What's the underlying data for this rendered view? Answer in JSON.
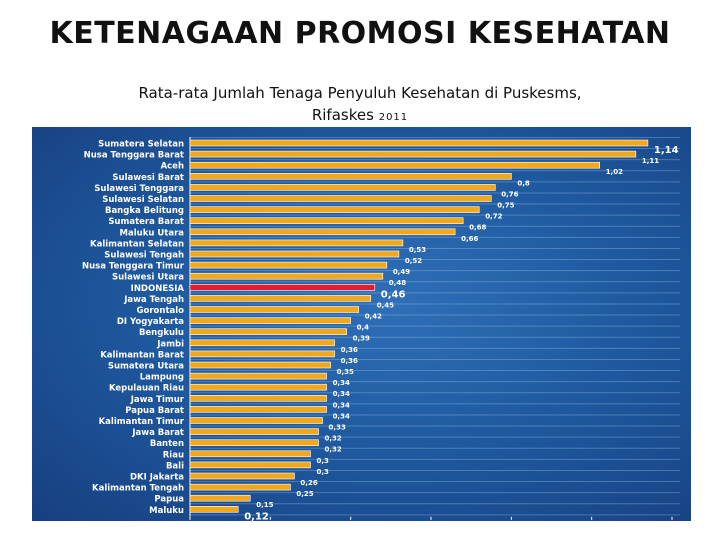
{
  "slide": {
    "title": "KETENAGAAN PROMOSI KESEHATAN",
    "subtitle_line1": "Rata-rata Jumlah Tenaga Penyuluh Kesehatan di Puskesms,",
    "subtitle_line2": "Rifaskes",
    "subtitle_year": "2011"
  },
  "colors": {
    "background": "#1f5aa0",
    "bar": "#f2a81d",
    "highlight_bar": "#e01e2e",
    "category_text": "#ffffff",
    "value_text": "#ffffff"
  },
  "chart_data": {
    "type": "bar",
    "orientation": "horizontal",
    "title": "",
    "xlabel": "",
    "ylabel": "",
    "xlim": [
      0,
      1.2
    ],
    "x_ticks": [
      "0",
      "0,2",
      "0,4",
      "0,6",
      "0,8",
      "1",
      "1,2"
    ],
    "grid": true,
    "highlight_category": "INDONESIA",
    "categories": [
      "Sumatera Selatan",
      "Nusa Tenggara Barat",
      "Aceh",
      "Sulawesi Barat",
      "Sulawesi Tenggara",
      "Sulawesi Selatan",
      "Bangka Belitung",
      "Sumatera Barat",
      "Maluku Utara",
      "Kalimantan Selatan",
      "Sulawesi Tengah",
      "Nusa Tenggara Timur",
      "Sulawesi Utara",
      "INDONESIA",
      "Jawa Tengah",
      "Gorontalo",
      "DI Yogyakarta",
      "Bengkulu",
      "Jambi",
      "Kalimantan Barat",
      "Sumatera Utara",
      "Lampung",
      "Kepulauan Riau",
      "Jawa Timur",
      "Papua Barat",
      "Kalimantan Timur",
      "Jawa Barat",
      "Banten",
      "Riau",
      "Bali",
      "DKI Jakarta",
      "Kalimantan Tengah",
      "Papua",
      "Maluku"
    ],
    "values": [
      1.14,
      1.11,
      1.02,
      0.8,
      0.76,
      0.75,
      0.72,
      0.68,
      0.66,
      0.53,
      0.52,
      0.49,
      0.48,
      0.46,
      0.45,
      0.42,
      0.4,
      0.39,
      0.36,
      0.36,
      0.35,
      0.34,
      0.34,
      0.34,
      0.34,
      0.33,
      0.32,
      0.32,
      0.3,
      0.3,
      0.26,
      0.25,
      0.15,
      0.12
    ],
    "value_labels": [
      "1,14",
      "1,11",
      "1,02",
      "0,8",
      "0,76",
      "0,75",
      "0,72",
      "0,68",
      "0,66",
      "0,53",
      "0,52",
      "0,49",
      "0,48",
      "0,46",
      "0,45",
      "0,42",
      "0,4",
      "0,39",
      "0,36",
      "0,36",
      "0,35",
      "0,34",
      "0,34",
      "0,34",
      "0,34",
      "0,33",
      "0,32",
      "0,32",
      "0,3",
      "0,3",
      "0,26",
      "0,25",
      "0,15",
      "0,12"
    ]
  }
}
